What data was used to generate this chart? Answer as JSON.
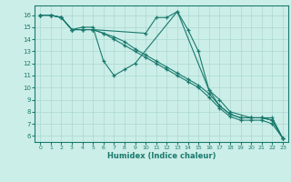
{
  "xlabel": "Humidex (Indice chaleur)",
  "bg_color": "#cceee8",
  "line_color": "#1a7a6e",
  "grid_color": "#aad8d0",
  "xlim": [
    -0.5,
    23.5
  ],
  "ylim": [
    5.5,
    16.8
  ],
  "yticks": [
    6,
    7,
    8,
    9,
    10,
    11,
    12,
    13,
    14,
    15,
    16
  ],
  "xticks": [
    0,
    1,
    2,
    3,
    4,
    5,
    6,
    7,
    8,
    9,
    10,
    11,
    12,
    13,
    14,
    15,
    16,
    17,
    18,
    19,
    20,
    21,
    22,
    23
  ],
  "line1_x": [
    0,
    1,
    2,
    3,
    5,
    10,
    11,
    12,
    13,
    16,
    17,
    18,
    20,
    21,
    22,
    23
  ],
  "line1_y": [
    16,
    16,
    15.8,
    14.8,
    14.8,
    14.5,
    15.8,
    15.8,
    16.3,
    9.8,
    9.0,
    8.0,
    7.5,
    7.5,
    7.5,
    5.8
  ],
  "line2_x": [
    0,
    1,
    2,
    3,
    4,
    5,
    6,
    7,
    8,
    9,
    13,
    14,
    15,
    16,
    17,
    18,
    19,
    20,
    21,
    22,
    23
  ],
  "line2_y": [
    16,
    16,
    15.8,
    14.8,
    15.0,
    15.0,
    12.2,
    11.0,
    11.5,
    12.0,
    16.3,
    14.8,
    13.0,
    9.8,
    8.5,
    7.8,
    7.5,
    7.5,
    7.5,
    7.3,
    5.8
  ],
  "line3_x": [
    0,
    1,
    2,
    3,
    4,
    5,
    6,
    7,
    8,
    9,
    10,
    11,
    12,
    13,
    14,
    15,
    16,
    17,
    18,
    19,
    20,
    21,
    22,
    23
  ],
  "line3_y": [
    16,
    16,
    15.8,
    14.8,
    14.8,
    14.8,
    14.5,
    14.2,
    13.8,
    13.2,
    12.7,
    12.2,
    11.7,
    11.2,
    10.7,
    10.2,
    9.5,
    8.5,
    7.8,
    7.5,
    7.5,
    7.5,
    7.3,
    5.8
  ],
  "line4_x": [
    0,
    1,
    2,
    3,
    4,
    5,
    6,
    7,
    8,
    9,
    10,
    11,
    12,
    13,
    14,
    15,
    16,
    17,
    18,
    19,
    20,
    21,
    22,
    23
  ],
  "line4_y": [
    16,
    16,
    15.8,
    14.8,
    14.8,
    14.8,
    14.5,
    14.0,
    13.5,
    13.0,
    12.5,
    12.0,
    11.5,
    11.0,
    10.5,
    10.0,
    9.2,
    8.3,
    7.6,
    7.3,
    7.3,
    7.3,
    7.0,
    5.8
  ]
}
